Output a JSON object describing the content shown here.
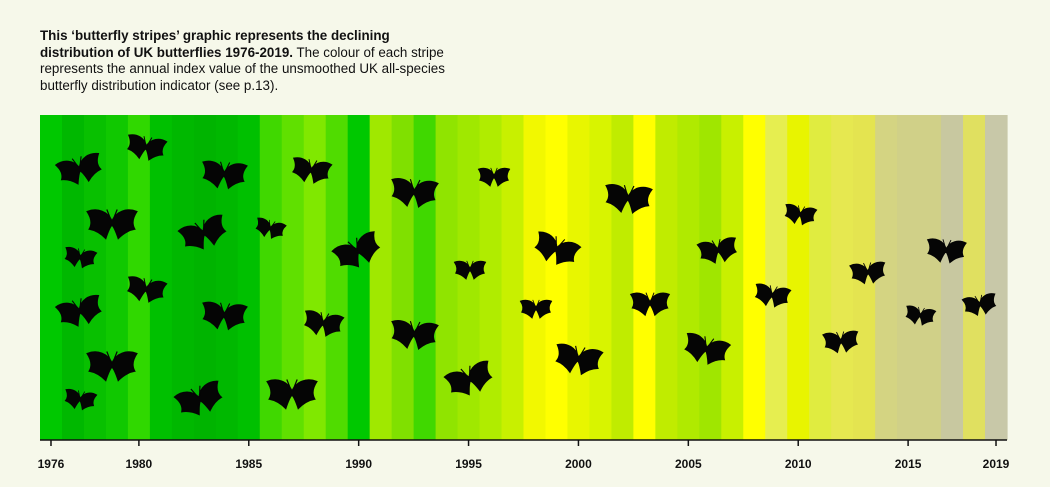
{
  "caption": {
    "bold": "This ‘butterfly stripes’ graphic represents the declining distribution of UK butterflies 1976-2019.",
    "normal": " The colour of each stripe represents the annual index value of the unsmoothed UK all-species butterfly distribution indicator (see p.13)."
  },
  "colors": {
    "background": "#f6f8ea",
    "butterfly": "#050505",
    "axis": "#111111"
  },
  "chart_data": {
    "type": "heatmap",
    "title": "",
    "xlabel": "",
    "ylabel": "",
    "xlim": [
      1976,
      2019
    ],
    "x_ticks": [
      "1976",
      "1980",
      "1985",
      "1990",
      "1995",
      "2000",
      "2005",
      "2010",
      "2015",
      "2019"
    ],
    "years": [
      1976,
      1977,
      1978,
      1979,
      1980,
      1981,
      1982,
      1983,
      1984,
      1985,
      1986,
      1987,
      1988,
      1989,
      1990,
      1991,
      1992,
      1993,
      1994,
      1995,
      1996,
      1997,
      1998,
      1999,
      2000,
      2001,
      2002,
      2003,
      2004,
      2005,
      2006,
      2007,
      2008,
      2009,
      2010,
      2011,
      2012,
      2013,
      2014,
      2015,
      2016,
      2017,
      2018,
      2019
    ],
    "stripe_colors": [
      "#00c800",
      "#00b800",
      "#08c000",
      "#10c800",
      "#30d800",
      "#00c000",
      "#00b800",
      "#00b400",
      "#00b800",
      "#00c000",
      "#40d800",
      "#60e000",
      "#80e800",
      "#50dc00",
      "#00c800",
      "#a0e800",
      "#80e000",
      "#40d800",
      "#90e400",
      "#a0e800",
      "#b0ec00",
      "#c8f000",
      "#f2f800",
      "#ffff00",
      "#e8f600",
      "#d8f400",
      "#c0ec00",
      "#ffff00",
      "#c0ec00",
      "#b0ea00",
      "#a0e600",
      "#c8f000",
      "#ffff00",
      "#e6ee50",
      "#e8f400",
      "#e0ec40",
      "#e6e850",
      "#e4e450",
      "#d4d482",
      "#d0d088",
      "#d0d088",
      "#c8c8a0",
      "#e0e060",
      "#c8c8a8"
    ],
    "legend": "none",
    "grid": false
  }
}
